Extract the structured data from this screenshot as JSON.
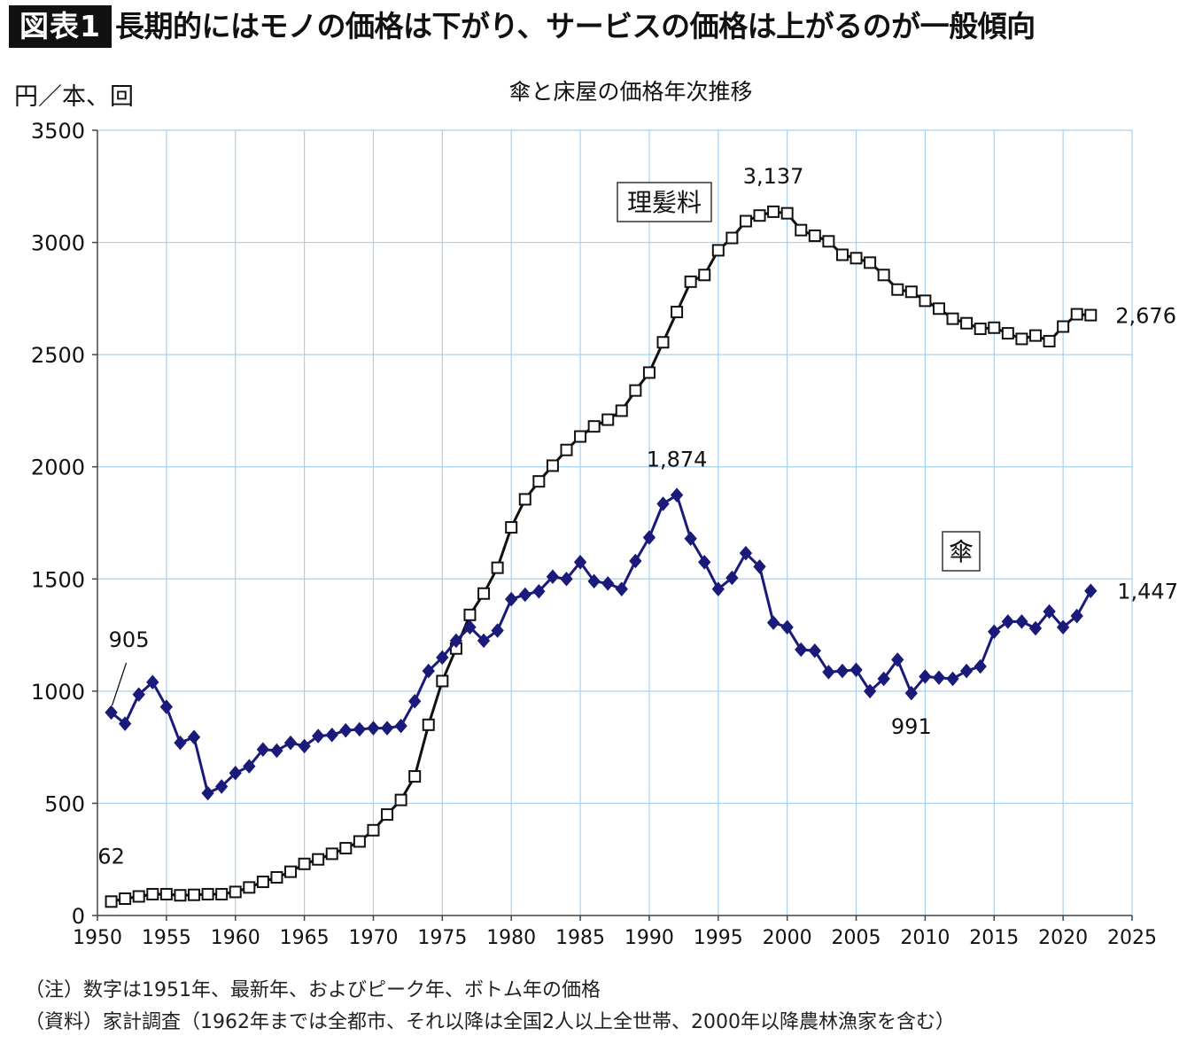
{
  "header": {
    "figure_label": "図表1",
    "title": "長期的にはモノの価格は下がり、サービスの価格は上がるのが一般傾向"
  },
  "notes": {
    "note": "（注）数字は1951年、最新年、およびピーク年、ボトム年の価格",
    "source": "（資料）家計調査（1962年までは全都市、それ以降は全国2人以上全世帯、2000年以降農林漁家を含む）"
  },
  "chart_data": {
    "type": "line",
    "title": "傘と床屋の価格年次推移",
    "ylabel": "円／本、回",
    "xlabel": "",
    "xlim": [
      1950,
      2025
    ],
    "ylim": [
      0,
      3500
    ],
    "x_ticks": [
      1950,
      1955,
      1960,
      1965,
      1970,
      1975,
      1980,
      1985,
      1990,
      1995,
      2000,
      2005,
      2010,
      2015,
      2020,
      2025
    ],
    "y_ticks": [
      0,
      500,
      1000,
      1500,
      2000,
      2500,
      3000,
      3500
    ],
    "grid": true,
    "colors": {
      "haircut": "#111111",
      "umbrella": "#1a1a7a",
      "grid": "#a8d0ee",
      "axis": "#444444"
    },
    "x": [
      1951,
      1952,
      1953,
      1954,
      1955,
      1956,
      1957,
      1958,
      1959,
      1960,
      1961,
      1962,
      1963,
      1964,
      1965,
      1966,
      1967,
      1968,
      1969,
      1970,
      1971,
      1972,
      1973,
      1974,
      1975,
      1976,
      1977,
      1978,
      1979,
      1980,
      1981,
      1982,
      1983,
      1984,
      1985,
      1986,
      1987,
      1988,
      1989,
      1990,
      1991,
      1992,
      1993,
      1994,
      1995,
      1996,
      1997,
      1998,
      1999,
      2000,
      2001,
      2002,
      2003,
      2004,
      2005,
      2006,
      2007,
      2008,
      2009,
      2010,
      2011,
      2012,
      2013,
      2014,
      2015,
      2016,
      2017,
      2018,
      2019,
      2020,
      2021,
      2022
    ],
    "series": [
      {
        "key": "haircut",
        "name": "理髪料",
        "marker": "open-square",
        "values": [
          62,
          75,
          85,
          95,
          95,
          90,
          92,
          95,
          95,
          105,
          125,
          150,
          170,
          195,
          230,
          250,
          275,
          300,
          330,
          380,
          450,
          515,
          620,
          850,
          1045,
          1190,
          1340,
          1435,
          1550,
          1730,
          1855,
          1935,
          2005,
          2075,
          2135,
          2180,
          2210,
          2250,
          2340,
          2420,
          2555,
          2690,
          2825,
          2855,
          2965,
          3020,
          3095,
          3120,
          3137,
          3130,
          3055,
          3030,
          3005,
          2945,
          2930,
          2910,
          2855,
          2790,
          2780,
          2740,
          2705,
          2660,
          2640,
          2615,
          2620,
          2595,
          2570,
          2585,
          2560,
          2625,
          2680,
          2676
        ]
      },
      {
        "key": "umbrella",
        "name": "傘",
        "marker": "filled-diamond",
        "values": [
          905,
          855,
          985,
          1040,
          930,
          770,
          795,
          545,
          575,
          635,
          665,
          740,
          735,
          770,
          755,
          800,
          805,
          825,
          830,
          835,
          835,
          845,
          955,
          1090,
          1150,
          1225,
          1285,
          1225,
          1270,
          1410,
          1430,
          1445,
          1510,
          1500,
          1575,
          1490,
          1480,
          1455,
          1580,
          1685,
          1835,
          1874,
          1680,
          1575,
          1455,
          1505,
          1615,
          1555,
          1305,
          1285,
          1185,
          1180,
          1085,
          1090,
          1095,
          1000,
          1055,
          1140,
          991,
          1065,
          1060,
          1055,
          1090,
          1110,
          1265,
          1310,
          1310,
          1280,
          1355,
          1285,
          1335,
          1447
        ]
      }
    ],
    "annotations": [
      {
        "series": "umbrella",
        "x": 1951,
        "text": "905"
      },
      {
        "series": "haircut",
        "x": 1951,
        "text": "62"
      },
      {
        "series": "haircut",
        "x": 1999,
        "text": "3,137"
      },
      {
        "series": "haircut",
        "x": 2022,
        "text": "2,676"
      },
      {
        "series": "umbrella",
        "x": 1992,
        "text": "1,874"
      },
      {
        "series": "umbrella",
        "x": 2009,
        "text": "991"
      },
      {
        "series": "umbrella",
        "x": 2022,
        "text": "1,447"
      }
    ]
  }
}
